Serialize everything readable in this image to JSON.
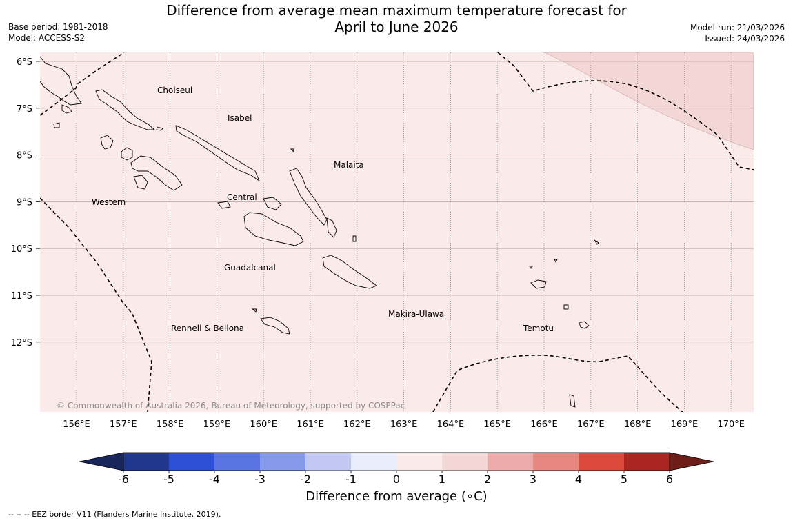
{
  "title": {
    "line1": "Difference from average mean maximum temperature forecast for",
    "line2": "April to June 2026"
  },
  "meta_left": {
    "base_period": "Base period: 1981-2018",
    "model": "Model: ACCESS-S2"
  },
  "meta_right": {
    "model_run": "Model run: 21/03/2026",
    "issued": "Issued: 24/03/2026"
  },
  "map": {
    "lat_labels": [
      "6°S",
      "7°S",
      "8°S",
      "9°S",
      "10°S",
      "11°S",
      "12°S"
    ],
    "lat_values": [
      -6,
      -7,
      -8,
      -9,
      -10,
      -11,
      -12
    ],
    "lon_labels": [
      "156°E",
      "157°E",
      "158°E",
      "159°E",
      "160°E",
      "161°E",
      "162°E",
      "163°E",
      "164°E",
      "165°E",
      "166°E",
      "167°E",
      "168°E",
      "169°E",
      "170°E"
    ],
    "lon_values": [
      156,
      157,
      158,
      159,
      160,
      161,
      162,
      163,
      164,
      165,
      166,
      167,
      168,
      169,
      170
    ],
    "regions": [
      "Choiseul",
      "Isabel",
      "Malaita",
      "Western",
      "Central",
      "Guadalcanal",
      "Makira-Ulawa",
      "Rennell & Bellona",
      "Temotu"
    ],
    "copyright": "© Commonwealth of Australia 2026, Bureau of Meteorology, supported by COSPPac",
    "background_color": "#fbeaea",
    "anomaly_patch_color": "#f3d7d6"
  },
  "colorbar": {
    "tick_labels": [
      "-6",
      "-5",
      "-4",
      "-3",
      "-2",
      "-1",
      "0",
      "1",
      "2",
      "3",
      "4",
      "5",
      "6"
    ],
    "colors": [
      "#21378e",
      "#2d4fd6",
      "#5a74e2",
      "#8599ea",
      "#c1c9f3",
      "#e9ecfb",
      "#fbeaea",
      "#f3d7d6",
      "#edabaa",
      "#e6877f",
      "#db4a3d",
      "#aa2620"
    ],
    "under_color": "#19265e",
    "over_color": "#6e1d19",
    "label": "Difference from average (∘C)"
  },
  "footer": "--  --  -- EEZ border V11 (Flanders Marine Institute, 2019)."
}
